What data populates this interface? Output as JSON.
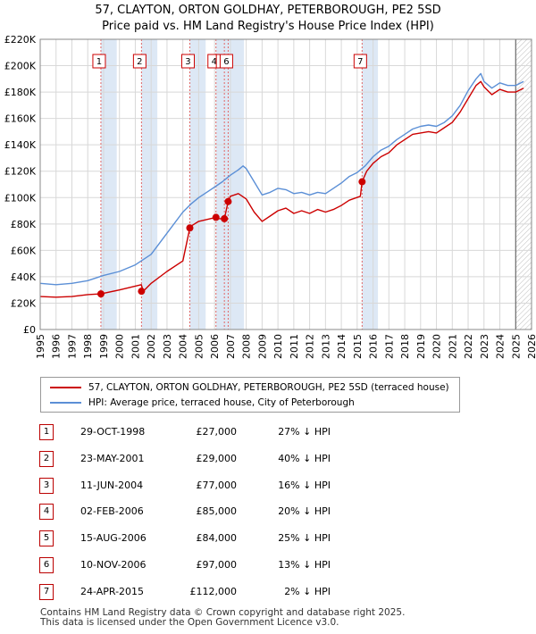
{
  "title": "57, CLAYTON, ORTON GOLDHAY, PETERBOROUGH, PE2 5SD",
  "subtitle": "Price paid vs. HM Land Registry's House Price Index (HPI)",
  "colors": {
    "red": "#cc0000",
    "blue": "#5b8fd6",
    "band": "#dde8f5",
    "grid": "#d8d8d8",
    "marker_border": "#cc0000",
    "vline": "#e06666"
  },
  "chart_data": {
    "type": "line",
    "title": "57, CLAYTON, ORTON GOLDHAY, PETERBOROUGH, PE2 5SD",
    "subtitle": "Price paid vs. HM Land Registry's House Price Index (HPI)",
    "xlabel": "",
    "ylabel": "",
    "xlim": [
      1995,
      2026
    ],
    "ylim": [
      0,
      220000
    ],
    "yticks": [
      0,
      20000,
      40000,
      60000,
      80000,
      100000,
      120000,
      140000,
      160000,
      180000,
      200000,
      220000
    ],
    "ytick_labels": [
      "£0",
      "£20K",
      "£40K",
      "£60K",
      "£80K",
      "£100K",
      "£120K",
      "£140K",
      "£160K",
      "£180K",
      "£200K",
      "£220K"
    ],
    "xticks": [
      1995,
      1996,
      1997,
      1998,
      1999,
      2000,
      2001,
      2002,
      2003,
      2004,
      2005,
      2006,
      2007,
      2008,
      2009,
      2010,
      2011,
      2012,
      2013,
      2014,
      2015,
      2016,
      2017,
      2018,
      2019,
      2020,
      2021,
      2022,
      2023,
      2024,
      2025,
      2026
    ],
    "xtick_labels": [
      "1995",
      "1996",
      "1997",
      "1998",
      "1999",
      "2000",
      "2001",
      "2002",
      "2003",
      "2004",
      "2005",
      "2006",
      "2007",
      "2008",
      "2009",
      "2010",
      "2011",
      "2012",
      "2013",
      "2014",
      "2015",
      "2016",
      "2017",
      "2018",
      "2019",
      "2020",
      "2021",
      "2022",
      "2023",
      "2024",
      "2025",
      "2026"
    ],
    "series": [
      {
        "name": "57, CLAYTON, ORTON GOLDHAY, PETERBOROUGH, PE2 5SD (terraced house)",
        "color": "#cc0000",
        "x": [
          1995,
          1996,
          1997,
          1998,
          1998.83,
          1999,
          2000,
          2001.38,
          2001.5,
          2002,
          2003,
          2004,
          2004.44,
          2004.6,
          2005,
          2006.09,
          2006.3,
          2006.62,
          2006.86,
          2007,
          2007.5,
          2008,
          2008.5,
          2009,
          2009.5,
          2010,
          2010.5,
          2011,
          2011.5,
          2012,
          2012.5,
          2013,
          2013.5,
          2014,
          2014.5,
          2015.2,
          2015.31,
          2015.6,
          2016,
          2016.5,
          2017,
          2017.5,
          2018,
          2018.5,
          2019,
          2019.5,
          2020,
          2020.5,
          2021,
          2021.5,
          2022,
          2022.5,
          2022.8,
          2023,
          2023.5,
          2024,
          2024.5,
          2025,
          2025.5
        ],
        "y": [
          25000,
          24500,
          25000,
          26500,
          27000,
          27500,
          30000,
          34000,
          29000,
          35000,
          44000,
          52000,
          77000,
          79000,
          82000,
          85000,
          84000,
          84000,
          97000,
          101000,
          103000,
          99000,
          89000,
          82000,
          86000,
          90000,
          92000,
          88000,
          90000,
          88000,
          91000,
          89000,
          91000,
          94000,
          98000,
          101000,
          112000,
          120000,
          126000,
          131000,
          134000,
          140000,
          144000,
          148000,
          149000,
          150000,
          149000,
          153000,
          157000,
          165000,
          175000,
          185000,
          188000,
          184000,
          178000,
          182000,
          180000,
          180000,
          183000
        ]
      },
      {
        "name": "HPI: Average price, terraced house, City of Peterborough",
        "color": "#5b8fd6",
        "x": [
          1995,
          1996,
          1997,
          1998,
          1999,
          2000,
          2001,
          2002,
          2003,
          2004,
          2004.5,
          2005,
          2005.5,
          2006,
          2006.5,
          2007,
          2007.5,
          2007.8,
          2008,
          2008.5,
          2009,
          2009.5,
          2010,
          2010.5,
          2011,
          2011.5,
          2012,
          2012.5,
          2013,
          2013.5,
          2014,
          2014.5,
          2015,
          2015.5,
          2016,
          2016.5,
          2017,
          2017.5,
          2018,
          2018.5,
          2019,
          2019.5,
          2020,
          2020.5,
          2021,
          2021.5,
          2022,
          2022.5,
          2022.8,
          2023,
          2023.5,
          2024,
          2024.5,
          2025,
          2025.5
        ],
        "y": [
          35000,
          34000,
          35000,
          37000,
          41000,
          44000,
          49000,
          57000,
          73000,
          89000,
          95000,
          100000,
          104000,
          108000,
          112000,
          117000,
          121000,
          124000,
          122000,
          112000,
          102000,
          104000,
          107000,
          106000,
          103000,
          104000,
          102000,
          104000,
          103000,
          107000,
          111000,
          116000,
          119000,
          124000,
          131000,
          136000,
          139000,
          144000,
          148000,
          152000,
          154000,
          155000,
          154000,
          157000,
          162000,
          170000,
          181000,
          190000,
          194000,
          188000,
          183000,
          187000,
          185000,
          185000,
          188000
        ]
      }
    ],
    "sales": [
      {
        "num": "1",
        "year": 1998.83,
        "price": 27000,
        "date": "29-OCT-1998",
        "price_label": "£27,000",
        "hpi_label": "27% ↓ HPI"
      },
      {
        "num": "2",
        "year": 2001.39,
        "price": 29000,
        "date": "23-MAY-2001",
        "price_label": "£29,000",
        "hpi_label": "40% ↓ HPI"
      },
      {
        "num": "3",
        "year": 2004.44,
        "price": 77000,
        "date": "11-JUN-2004",
        "price_label": "£77,000",
        "hpi_label": "16% ↓ HPI"
      },
      {
        "num": "4",
        "year": 2006.09,
        "price": 85000,
        "date": "02-FEB-2006",
        "price_label": "£85,000",
        "hpi_label": "20% ↓ HPI"
      },
      {
        "num": "5",
        "year": 2006.62,
        "price": 84000,
        "date": "15-AUG-2006",
        "price_label": "£84,000",
        "hpi_label": "25% ↓ HPI"
      },
      {
        "num": "6",
        "year": 2006.86,
        "price": 97000,
        "date": "10-NOV-2006",
        "price_label": "£97,000",
        "hpi_label": "13% ↓ HPI"
      },
      {
        "num": "7",
        "year": 2015.31,
        "price": 112000,
        "date": "24-APR-2015",
        "price_label": "£112,000",
        "hpi_label": "2% ↓ HPI"
      }
    ],
    "hatch_from": 2025.0
  },
  "legend": {
    "red_label": "57, CLAYTON, ORTON GOLDHAY, PETERBOROUGH, PE2 5SD (terraced house)",
    "blue_label": "HPI: Average price, terraced house, City of Peterborough"
  },
  "footer": {
    "line1": "Contains HM Land Registry data © Crown copyright and database right 2025.",
    "line2": "This data is licensed under the Open Government Licence v3.0."
  }
}
